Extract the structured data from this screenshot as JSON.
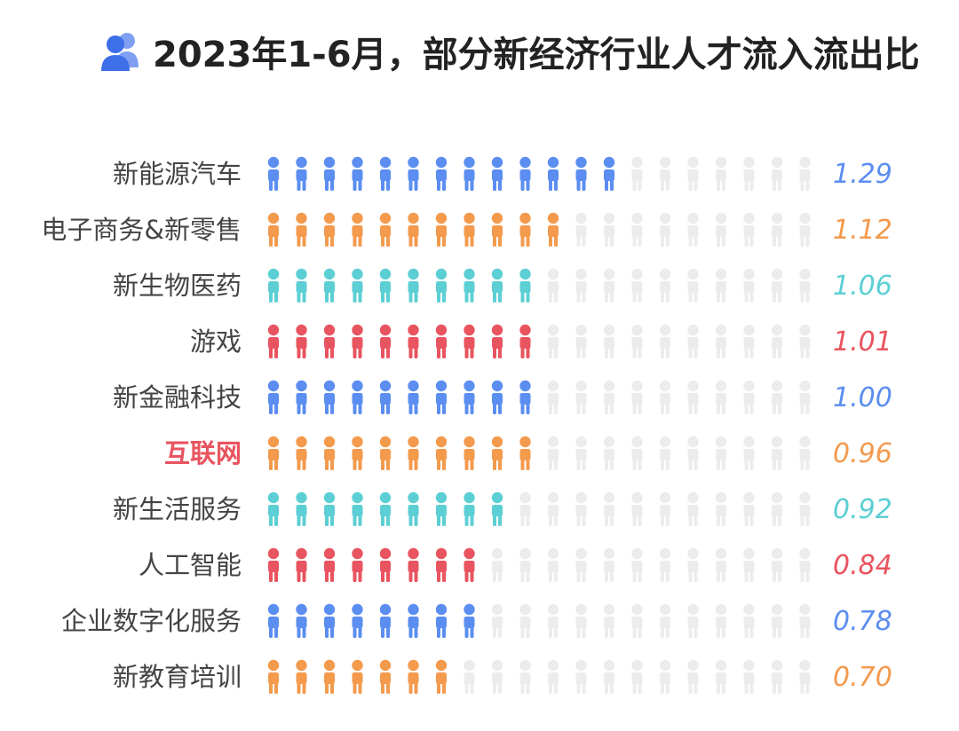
{
  "title": "2023年1-6月，部分新经济行业人才流入流出比",
  "header_icon": "users-icon",
  "colors": {
    "blue": "#5b8ef0",
    "orange": "#f39a4d",
    "teal": "#5ccfd4",
    "red": "#e8545f",
    "empty": "#ececec",
    "highlight_label": "#e8545f"
  },
  "chart_data": {
    "type": "pictograph",
    "title": "2023年1-6月，部分新经济行业人才流入流出比",
    "total_icons_per_row": 20,
    "categories": [
      "新能源汽车",
      "电子商务&新零售",
      "新生物医药",
      "游戏",
      "新金融科技",
      "互联网",
      "新生活服务",
      "人工智能",
      "企业数字化服务",
      "新教育培训"
    ],
    "values": [
      1.29,
      1.12,
      1.06,
      1.01,
      1.0,
      0.96,
      0.92,
      0.84,
      0.78,
      0.7
    ],
    "value_labels": [
      "1.29",
      "1.12",
      "1.06",
      "1.01",
      "1.00",
      "0.96",
      "0.92",
      "0.84",
      "0.78",
      "0.70"
    ],
    "filled_icons": [
      13,
      11,
      10,
      10,
      10,
      10,
      9,
      8,
      8,
      7
    ],
    "row_colors": [
      "blue",
      "orange",
      "teal",
      "red",
      "blue",
      "orange",
      "teal",
      "red",
      "blue",
      "orange"
    ],
    "highlighted_category": "互联网"
  }
}
